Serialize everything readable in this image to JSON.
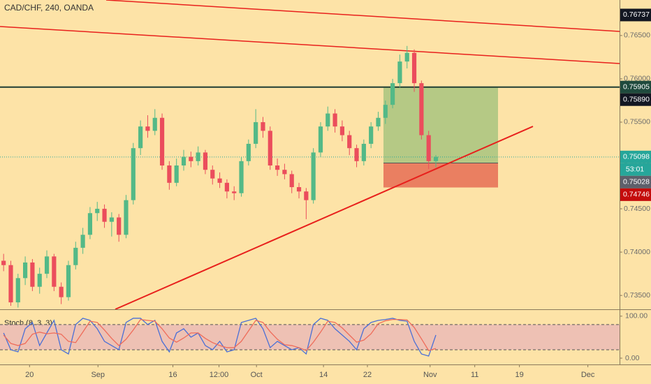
{
  "chart_data": {
    "type": "candlestick",
    "title": "CAD/CHF, 240, OANDA",
    "up_color": "#53b987",
    "down_color": "#eb4d5c",
    "candles": [
      [
        0.739,
        0.7398,
        0.7378,
        0.7385
      ],
      [
        0.7385,
        0.739,
        0.7338,
        0.7342
      ],
      [
        0.7342,
        0.7375,
        0.7336,
        0.737
      ],
      [
        0.737,
        0.7395,
        0.7362,
        0.7388
      ],
      [
        0.7388,
        0.7392,
        0.7355,
        0.736
      ],
      [
        0.736,
        0.7382,
        0.7352,
        0.7375
      ],
      [
        0.7375,
        0.7402,
        0.737,
        0.7395
      ],
      [
        0.7395,
        0.7398,
        0.7355,
        0.736
      ],
      [
        0.736,
        0.7365,
        0.734,
        0.7348
      ],
      [
        0.7348,
        0.739,
        0.7344,
        0.7385
      ],
      [
        0.7385,
        0.7412,
        0.738,
        0.7405
      ],
      [
        0.7405,
        0.7428,
        0.7398,
        0.742
      ],
      [
        0.742,
        0.7452,
        0.7415,
        0.7445
      ],
      [
        0.7445,
        0.7458,
        0.7436,
        0.745
      ],
      [
        0.745,
        0.7455,
        0.7428,
        0.7435
      ],
      [
        0.7435,
        0.7446,
        0.7418,
        0.744
      ],
      [
        0.744,
        0.7444,
        0.7412,
        0.742
      ],
      [
        0.742,
        0.7466,
        0.7416,
        0.746
      ],
      [
        0.746,
        0.7526,
        0.7455,
        0.752
      ],
      [
        0.752,
        0.7552,
        0.7512,
        0.7545
      ],
      [
        0.7545,
        0.7558,
        0.7532,
        0.754
      ],
      [
        0.754,
        0.7565,
        0.7535,
        0.7555
      ],
      [
        0.7555,
        0.756,
        0.7495,
        0.75
      ],
      [
        0.75,
        0.7505,
        0.7472,
        0.748
      ],
      [
        0.748,
        0.7508,
        0.7476,
        0.75
      ],
      [
        0.75,
        0.7518,
        0.7494,
        0.751
      ],
      [
        0.751,
        0.7516,
        0.7498,
        0.7505
      ],
      [
        0.7505,
        0.7522,
        0.75,
        0.7515
      ],
      [
        0.7515,
        0.7518,
        0.749,
        0.7495
      ],
      [
        0.7495,
        0.75,
        0.7478,
        0.7485
      ],
      [
        0.7485,
        0.7492,
        0.7474,
        0.748
      ],
      [
        0.748,
        0.7484,
        0.7462,
        0.747
      ],
      [
        0.747,
        0.7476,
        0.746,
        0.7468
      ],
      [
        0.7468,
        0.751,
        0.7464,
        0.7505
      ],
      [
        0.7505,
        0.753,
        0.75,
        0.7525
      ],
      [
        0.7525,
        0.7565,
        0.752,
        0.755
      ],
      [
        0.755,
        0.7556,
        0.7532,
        0.754
      ],
      [
        0.754,
        0.7545,
        0.7495,
        0.75
      ],
      [
        0.75,
        0.7508,
        0.7488,
        0.7495
      ],
      [
        0.7495,
        0.7502,
        0.7484,
        0.749
      ],
      [
        0.749,
        0.7494,
        0.7468,
        0.7475
      ],
      [
        0.7475,
        0.748,
        0.7462,
        0.747
      ],
      [
        0.747,
        0.7474,
        0.7438,
        0.746
      ],
      [
        0.746,
        0.752,
        0.7456,
        0.7515
      ],
      [
        0.7515,
        0.755,
        0.751,
        0.7545
      ],
      [
        0.7545,
        0.7568,
        0.754,
        0.756
      ],
      [
        0.756,
        0.7565,
        0.7538,
        0.7545
      ],
      [
        0.7545,
        0.7552,
        0.7528,
        0.7535
      ],
      [
        0.7535,
        0.754,
        0.7512,
        0.752
      ],
      [
        0.752,
        0.7524,
        0.7498,
        0.7505
      ],
      [
        0.7505,
        0.753,
        0.75,
        0.7525
      ],
      [
        0.7525,
        0.755,
        0.752,
        0.7545
      ],
      [
        0.7545,
        0.7562,
        0.754,
        0.7555
      ],
      [
        0.7555,
        0.7575,
        0.7548,
        0.757
      ],
      [
        0.757,
        0.76,
        0.7566,
        0.7595
      ],
      [
        0.7595,
        0.7628,
        0.759,
        0.762
      ],
      [
        0.762,
        0.7638,
        0.7612,
        0.763
      ],
      [
        0.763,
        0.7634,
        0.7585,
        0.7595
      ],
      [
        0.7595,
        0.7598,
        0.753,
        0.7535
      ],
      [
        0.7535,
        0.754,
        0.7496,
        0.7505
      ],
      [
        0.7505,
        0.7512,
        0.7498,
        0.751
      ]
    ],
    "xlim": [
      0,
      86
    ],
    "xticks": [
      {
        "value": 4.1,
        "label": "20"
      },
      {
        "value": 13.6,
        "label": "Sep"
      },
      {
        "value": 24,
        "label": "16"
      },
      {
        "value": 30.4,
        "label": "12:00"
      },
      {
        "value": 35.6,
        "label": "Oct"
      },
      {
        "value": 44.9,
        "label": "14"
      },
      {
        "value": 51,
        "label": "22"
      },
      {
        "value": 59.7,
        "label": "Nov"
      },
      {
        "value": 65.9,
        "label": "11"
      },
      {
        "value": 72.1,
        "label": "19"
      },
      {
        "value": 81.6,
        "label": "Dec"
      }
    ],
    "ylim": [
      0.7334,
      0.7691
    ],
    "yticks": [
      {
        "value": 0.735,
        "label": "0.73500"
      },
      {
        "value": 0.74,
        "label": "0.74000"
      },
      {
        "value": 0.745,
        "label": "0.74500"
      },
      {
        "value": 0.75,
        "label": "0.75000"
      },
      {
        "value": 0.755,
        "label": "0.75500"
      },
      {
        "value": 0.76,
        "label": "0.76000"
      },
      {
        "value": 0.765,
        "label": "0.76500"
      }
    ],
    "price_tags": [
      {
        "value": 0.76737,
        "color": "#131722"
      },
      {
        "value": 0.75905,
        "color": "#1f4a3d"
      },
      {
        "value": 0.7589,
        "label": "0.75890",
        "color": "#131722"
      },
      {
        "value": 0.75098,
        "color": "#26a69a"
      },
      {
        "value": 0.75028,
        "color": "#5d606b"
      },
      {
        "value": 0.74746,
        "color": "#c40c0c"
      }
    ],
    "countdown": "53:01",
    "indicator": {
      "title": "Stoch (8, 3, 3)",
      "ylim": [
        -15,
        113
      ],
      "yticks": [
        {
          "value": 100,
          "label": "100.00"
        },
        {
          "value": 0,
          "label": "0.00"
        }
      ],
      "levels": [
        80,
        20
      ],
      "series": [
        {
          "color": "#4a6fd6",
          "values": [
            60,
            20,
            15,
            70,
            85,
            30,
            60,
            90,
            20,
            10,
            80,
            95,
            90,
            70,
            40,
            30,
            20,
            85,
            95,
            95,
            80,
            90,
            40,
            15,
            60,
            70,
            50,
            60,
            30,
            20,
            40,
            15,
            20,
            85,
            90,
            95,
            70,
            25,
            40,
            30,
            20,
            25,
            10,
            80,
            95,
            90,
            70,
            55,
            40,
            20,
            70,
            85,
            90,
            92,
            95,
            90,
            88,
            40,
            10,
            5,
            55
          ]
        },
        {
          "color": "#ef6c5a",
          "values": [
            55,
            35,
            30,
            35,
            57,
            62,
            58,
            60,
            57,
            40,
            37,
            62,
            88,
            85,
            67,
            47,
            30,
            45,
            67,
            92,
            90,
            88,
            70,
            48,
            38,
            48,
            60,
            60,
            47,
            37,
            30,
            25,
            25,
            40,
            65,
            90,
            85,
            63,
            45,
            32,
            30,
            25,
            18,
            38,
            62,
            88,
            85,
            72,
            55,
            38,
            43,
            58,
            82,
            89,
            92,
            92,
            91,
            73,
            46,
            18,
            23
          ]
        }
      ]
    }
  }
}
